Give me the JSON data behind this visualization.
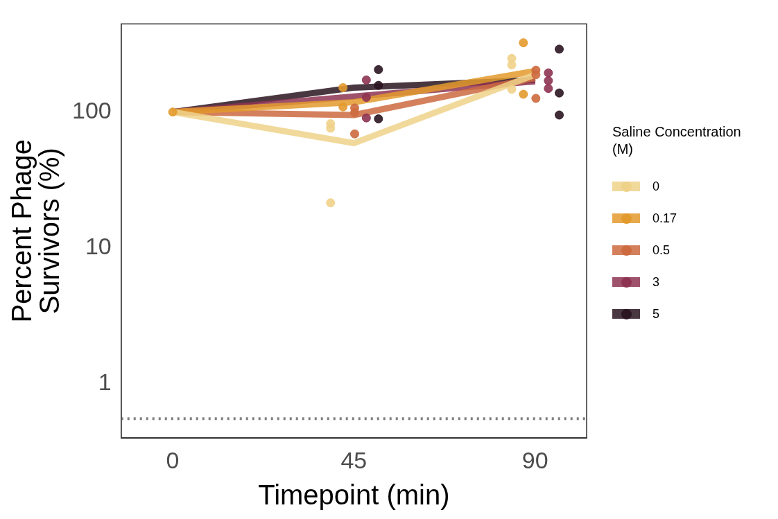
{
  "chart_data": {
    "type": "line",
    "xlabel": "Timepoint (min)",
    "ylabel": "Percent Phage Survivors (%)",
    "legend_title": "Saline Concentration (M)",
    "legend": "right",
    "log": "y",
    "grid": false,
    "marker": "circle",
    "line_style": "solid",
    "xlim": [
      -12.8,
      102.8
    ],
    "xticks": [
      0,
      45,
      90
    ],
    "ylim": [
      0.4,
      445
    ],
    "yticks": [
      1,
      10,
      100
    ],
    "ref_lines": [
      {
        "axis": "y",
        "value": 0.556,
        "color": "#808080",
        "line_style": "dotted"
      }
    ],
    "series": [
      {
        "name": "0",
        "color": "#efd28a",
        "marker": "none",
        "x": [
          0,
          45,
          90
        ],
        "values": [
          100,
          59,
          188
        ]
      },
      {
        "name": "0.17",
        "color": "#e39a2d",
        "marker": "none",
        "x": [
          0,
          45,
          90
        ],
        "values": [
          100,
          118,
          200
        ]
      },
      {
        "name": "0.5",
        "color": "#cd6a3f",
        "marker": "none",
        "x": [
          0,
          45,
          90
        ],
        "values": [
          100,
          95,
          178
        ]
      },
      {
        "name": "3",
        "color": "#8e3452",
        "marker": "none",
        "x": [
          0,
          45,
          90
        ],
        "values": [
          100,
          130,
          168
        ]
      },
      {
        "name": "5",
        "color": "#2a1520",
        "marker": "none",
        "x": [
          0,
          45,
          90
        ],
        "values": [
          100,
          151,
          172
        ]
      },
      {
        "color": "#efd28a",
        "type": "scatter",
        "x": [
          39.2,
          39.2,
          39.2,
          84.2,
          84.2,
          84.2
        ],
        "values": [
          82,
          76,
          21.5,
          248,
          222,
          147
        ]
      },
      {
        "color": "#e39a2d",
        "type": "scatter",
        "x": [
          0,
          42.3,
          42.3,
          87.1,
          87.1
        ],
        "values": [
          100,
          151,
          109,
          323,
          135
        ]
      },
      {
        "color": "#cd6a3f",
        "type": "scatter",
        "x": [
          45.2,
          45.2,
          45.2,
          90.2,
          90.2,
          90.2
        ],
        "values": [
          107,
          99,
          69,
          203,
          188,
          126
        ]
      },
      {
        "color": "#8e3452",
        "type": "scatter",
        "x": [
          48.1,
          48.1,
          48.1,
          93.3,
          93.3,
          93.3
        ],
        "values": [
          172,
          128,
          90.5,
          194,
          170,
          149
        ]
      },
      {
        "color": "#2a1520",
        "type": "scatter",
        "x": [
          51.1,
          51.1,
          51.1,
          96,
          96,
          96
        ],
        "values": [
          205,
          157,
          89,
          290,
          138,
          95
        ]
      }
    ]
  }
}
